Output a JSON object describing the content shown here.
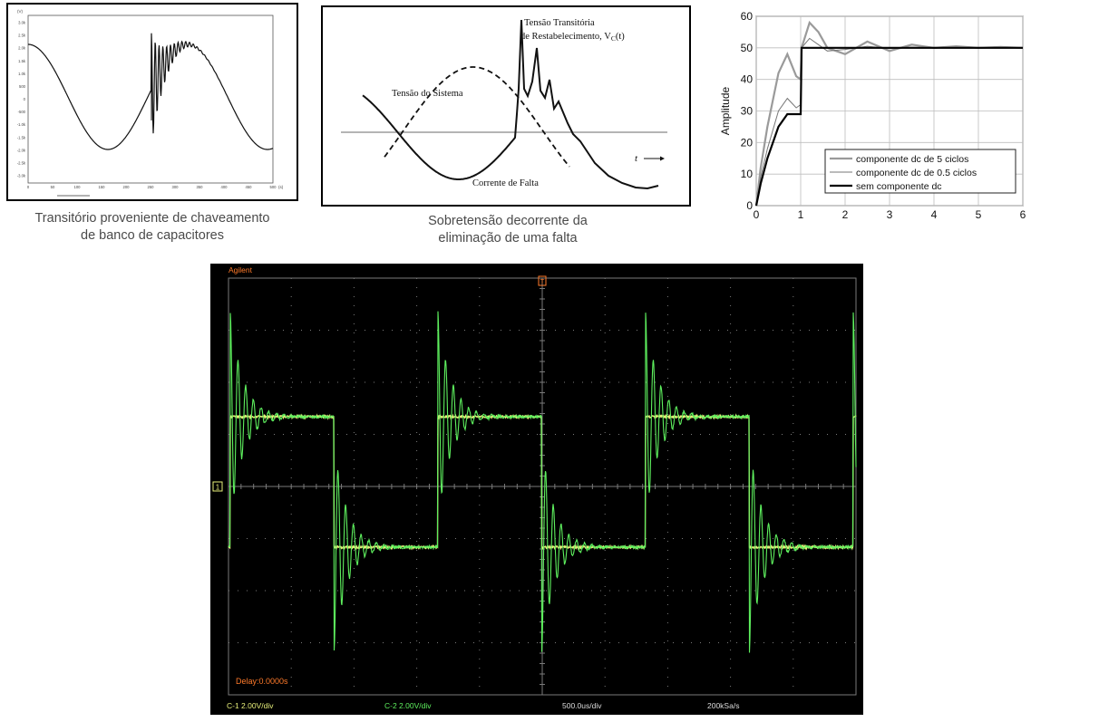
{
  "colors": {
    "scope_bg": "#000000",
    "scope_grid": "#7a7a7a",
    "scope_ch1": "#e7ef7a",
    "scope_ch2": "#5ef05e",
    "scope_orange": "#ff7a2a",
    "caption": "#4a4a4a"
  },
  "captions": {
    "panel1": [
      "Transitório proveniente de chaveamento",
      "de banco de capacitores"
    ],
    "panel2": [
      "Sobretensão decorrente da",
      "eliminação de uma falta"
    ]
  },
  "panel2_labels": {
    "trv_line1": "Tensão Transitória",
    "trv_line2": "de Restabelecimento, V",
    "trv_sub": "C",
    "trv_tail": "(t)",
    "system_voltage": "Tensão do Sistema",
    "fault_current": "Corrente de Falta",
    "time": "t"
  },
  "scope": {
    "brand": "Agilent",
    "delay": "Delay:0.0000s",
    "ch1_scale": "C-1 2.00V/div",
    "ch2_scale": "C-2 2.00V/div",
    "timebase": "500.0us/div",
    "sample_rate": "200kSa/s",
    "trigger_marker": "T",
    "ground_marker": "1"
  },
  "chart_data": [
    {
      "id": "capacitor-switching",
      "type": "line",
      "title": "",
      "xlabel": "",
      "ylabel": "",
      "x_ticks": [
        "0",
        "50",
        "100",
        "150",
        "200",
        "250",
        "300",
        "350",
        "400",
        "450",
        "500"
      ],
      "series": [
        {
          "description": "sinusoidal voltage with high-frequency oscillatory transient at capacitor energization",
          "x": [
            0,
            50,
            100,
            150,
            200,
            210,
            220,
            250,
            300,
            350,
            400,
            450,
            500
          ],
          "y": [
            0.5,
            1.0,
            0.0,
            -1.0,
            -0.3,
            1.6,
            1.1,
            0.6,
            -0.3,
            -1.0,
            0.0,
            1.0,
            0.0
          ]
        }
      ]
    },
    {
      "id": "fault-clearing-overvoltage",
      "type": "line",
      "title": "",
      "xlabel": "",
      "ylabel": "",
      "series": [
        {
          "name": "Tensão do Sistema",
          "x": [
            0.0,
            0.1,
            0.2,
            0.3,
            0.4,
            0.5,
            0.6,
            0.7,
            0.8,
            0.9,
            1.0
          ],
          "y": [
            -0.85,
            -0.55,
            -0.05,
            0.45,
            0.85,
            1.0,
            0.9,
            0.6,
            0.2,
            -0.2,
            -0.5
          ]
        },
        {
          "name": "Corrente de Falta",
          "x": [
            0.0,
            0.1,
            0.2,
            0.3,
            0.4,
            0.5,
            0.6,
            0.7,
            0.8,
            0.9,
            1.0
          ],
          "y": [
            0.55,
            0.2,
            -0.35,
            -0.7,
            -0.35,
            0.2,
            1.75,
            1.0,
            -0.6,
            -0.8,
            -0.7
          ]
        }
      ]
    },
    {
      "id": "step-response-dc-component",
      "type": "line",
      "title": "",
      "xlabel": "",
      "ylabel": "Amplitude",
      "xlim": [
        0,
        6
      ],
      "ylim": [
        0,
        60
      ],
      "x_ticks": [
        0,
        1,
        2,
        3,
        4,
        5,
        6
      ],
      "y_ticks": [
        0,
        10,
        20,
        30,
        40,
        50,
        60
      ],
      "grid": true,
      "legend_position": "lower-right",
      "series": [
        {
          "name": "componente dc de 5 ciclos",
          "x": [
            0,
            0.1,
            0.25,
            0.5,
            0.7,
            0.9,
            1.0,
            1.02,
            1.2,
            1.4,
            1.6,
            2.0,
            2.5,
            3.0,
            3.5,
            4.0,
            4.5,
            5.0,
            5.5,
            6.0
          ],
          "y": [
            0,
            12,
            25,
            42,
            48,
            41,
            40,
            50,
            58,
            55,
            50,
            48,
            52,
            49,
            51,
            50,
            50.5,
            50,
            50.3,
            50
          ]
        },
        {
          "name": "componente dc de 0.5 ciclos",
          "x": [
            0,
            0.1,
            0.25,
            0.5,
            0.7,
            0.9,
            1.0,
            1.02,
            1.2,
            1.4,
            1.6,
            2.0,
            2.5,
            3.0,
            3.5,
            4.0,
            4.5,
            5.0,
            5.5,
            6.0
          ],
          "y": [
            0,
            9,
            18,
            30,
            34,
            31,
            32,
            50,
            53,
            51,
            49,
            49.5,
            50.5,
            49.8,
            50.2,
            50,
            50.1,
            50,
            50,
            50
          ]
        },
        {
          "name": "sem componente dc",
          "x": [
            0,
            0.1,
            0.25,
            0.5,
            0.7,
            0.9,
            1.0,
            1.02,
            1.5,
            2.0,
            3.0,
            4.0,
            5.0,
            6.0
          ],
          "y": [
            0,
            7,
            15,
            25,
            29,
            29,
            29,
            50,
            50,
            50,
            50,
            50,
            50,
            50
          ]
        }
      ]
    },
    {
      "id": "oscilloscope-capture",
      "type": "line",
      "title": "",
      "xlabel": "",
      "ylabel": "",
      "series": [
        {
          "name": "C-1",
          "description": "square wave with ringing at each transition"
        },
        {
          "name": "C-2",
          "description": "square wave with damped oscillatory overshoot"
        }
      ]
    }
  ]
}
